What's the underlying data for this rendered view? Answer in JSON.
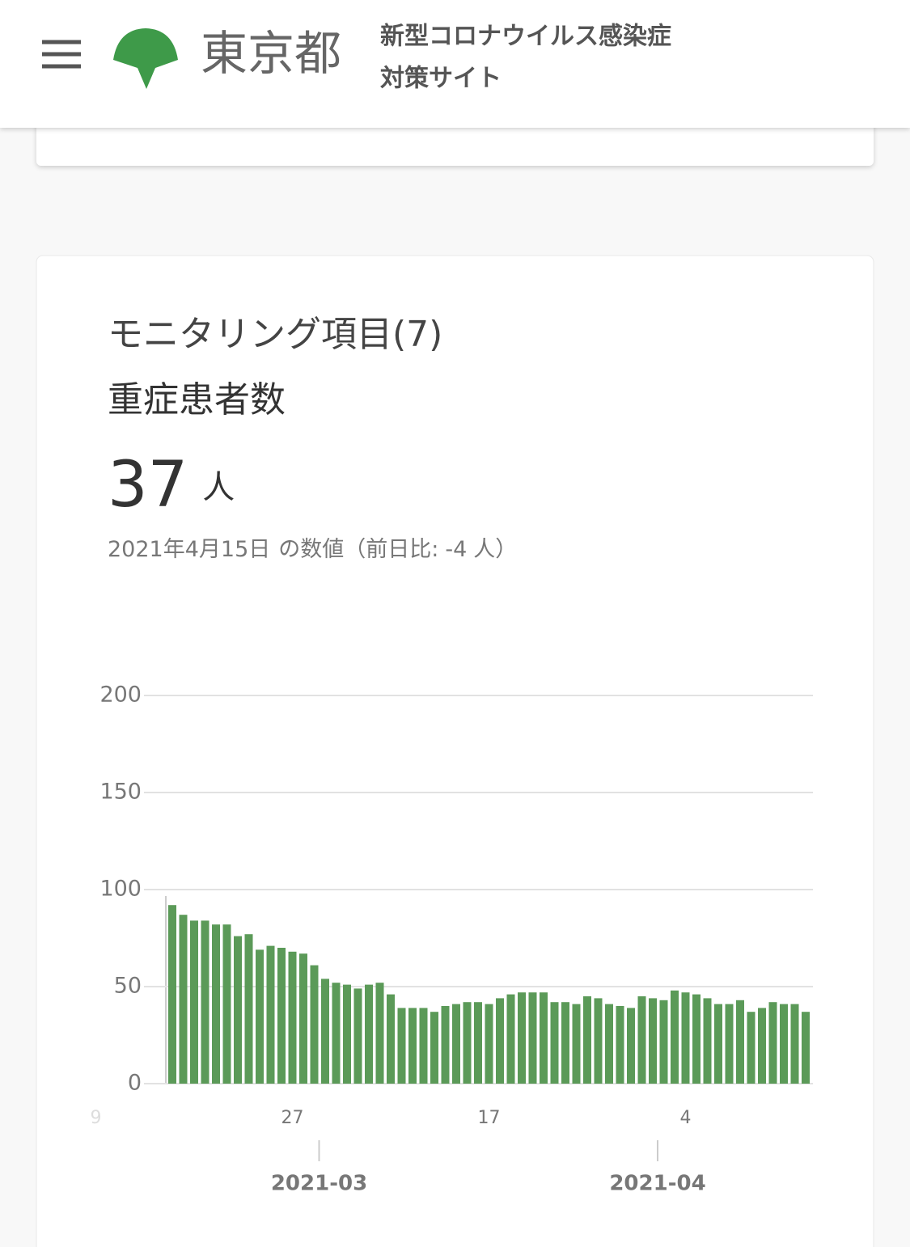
{
  "header": {
    "city": "東京都",
    "site_title_lines": [
      "新型コロナウイルス感染症",
      "対策サイト"
    ]
  },
  "card": {
    "title": "モニタリング項目(7)",
    "subtitle": "重症患者数",
    "value": 37,
    "unit": "人",
    "date": "2021年4月15日",
    "note_prefix": "の数値（前日比:",
    "change": -4,
    "note_suffix": "人）"
  },
  "chart_data": {
    "type": "bar",
    "color": "#5b9a58",
    "x": [
      "2021-02-16",
      "2021-02-17",
      "2021-02-18",
      "2021-02-19",
      "2021-02-20",
      "2021-02-21",
      "2021-02-22",
      "2021-02-23",
      "2021-02-24",
      "2021-02-25",
      "2021-02-26",
      "2021-02-27",
      "2021-02-28",
      "2021-03-01",
      "2021-03-02",
      "2021-03-03",
      "2021-03-04",
      "2021-03-05",
      "2021-03-06",
      "2021-03-07",
      "2021-03-08",
      "2021-03-09",
      "2021-03-10",
      "2021-03-11",
      "2021-03-12",
      "2021-03-13",
      "2021-03-14",
      "2021-03-15",
      "2021-03-16",
      "2021-03-17",
      "2021-03-18",
      "2021-03-19",
      "2021-03-20",
      "2021-03-21",
      "2021-03-22",
      "2021-03-23",
      "2021-03-24",
      "2021-03-25",
      "2021-03-26",
      "2021-03-27",
      "2021-03-28",
      "2021-03-29",
      "2021-03-30",
      "2021-03-31",
      "2021-04-01",
      "2021-04-02",
      "2021-04-03",
      "2021-04-04",
      "2021-04-05",
      "2021-04-06",
      "2021-04-07",
      "2021-04-08",
      "2021-04-09",
      "2021-04-10",
      "2021-04-11",
      "2021-04-12",
      "2021-04-13",
      "2021-04-14",
      "2021-04-15"
    ],
    "values": [
      92,
      87,
      84,
      84,
      82,
      82,
      76,
      77,
      69,
      71,
      70,
      68,
      67,
      61,
      54,
      52,
      51,
      49,
      51,
      52,
      46,
      39,
      39,
      39,
      37,
      40,
      41,
      42,
      42,
      41,
      44,
      46,
      47,
      47,
      47,
      42,
      42,
      41,
      45,
      44,
      41,
      40,
      39,
      45,
      44,
      43,
      48,
      47,
      46,
      44,
      41,
      41,
      43,
      37,
      39,
      42,
      41,
      41,
      37
    ],
    "ylim": [
      0,
      200
    ],
    "yticks": [
      0,
      50,
      100,
      150,
      200
    ],
    "grid": true,
    "xticks": [
      {
        "value": "2021-02-09",
        "label": "9"
      },
      {
        "value": "2021-02-27",
        "label": "27"
      },
      {
        "value": "2021-03-17",
        "label": "17"
      },
      {
        "value": "2021-04-04",
        "label": "4"
      }
    ],
    "month_ticks": [
      {
        "value": "2021-03-01",
        "label": "2021-03"
      },
      {
        "value": "2021-04-01",
        "label": "2021-04"
      }
    ]
  }
}
